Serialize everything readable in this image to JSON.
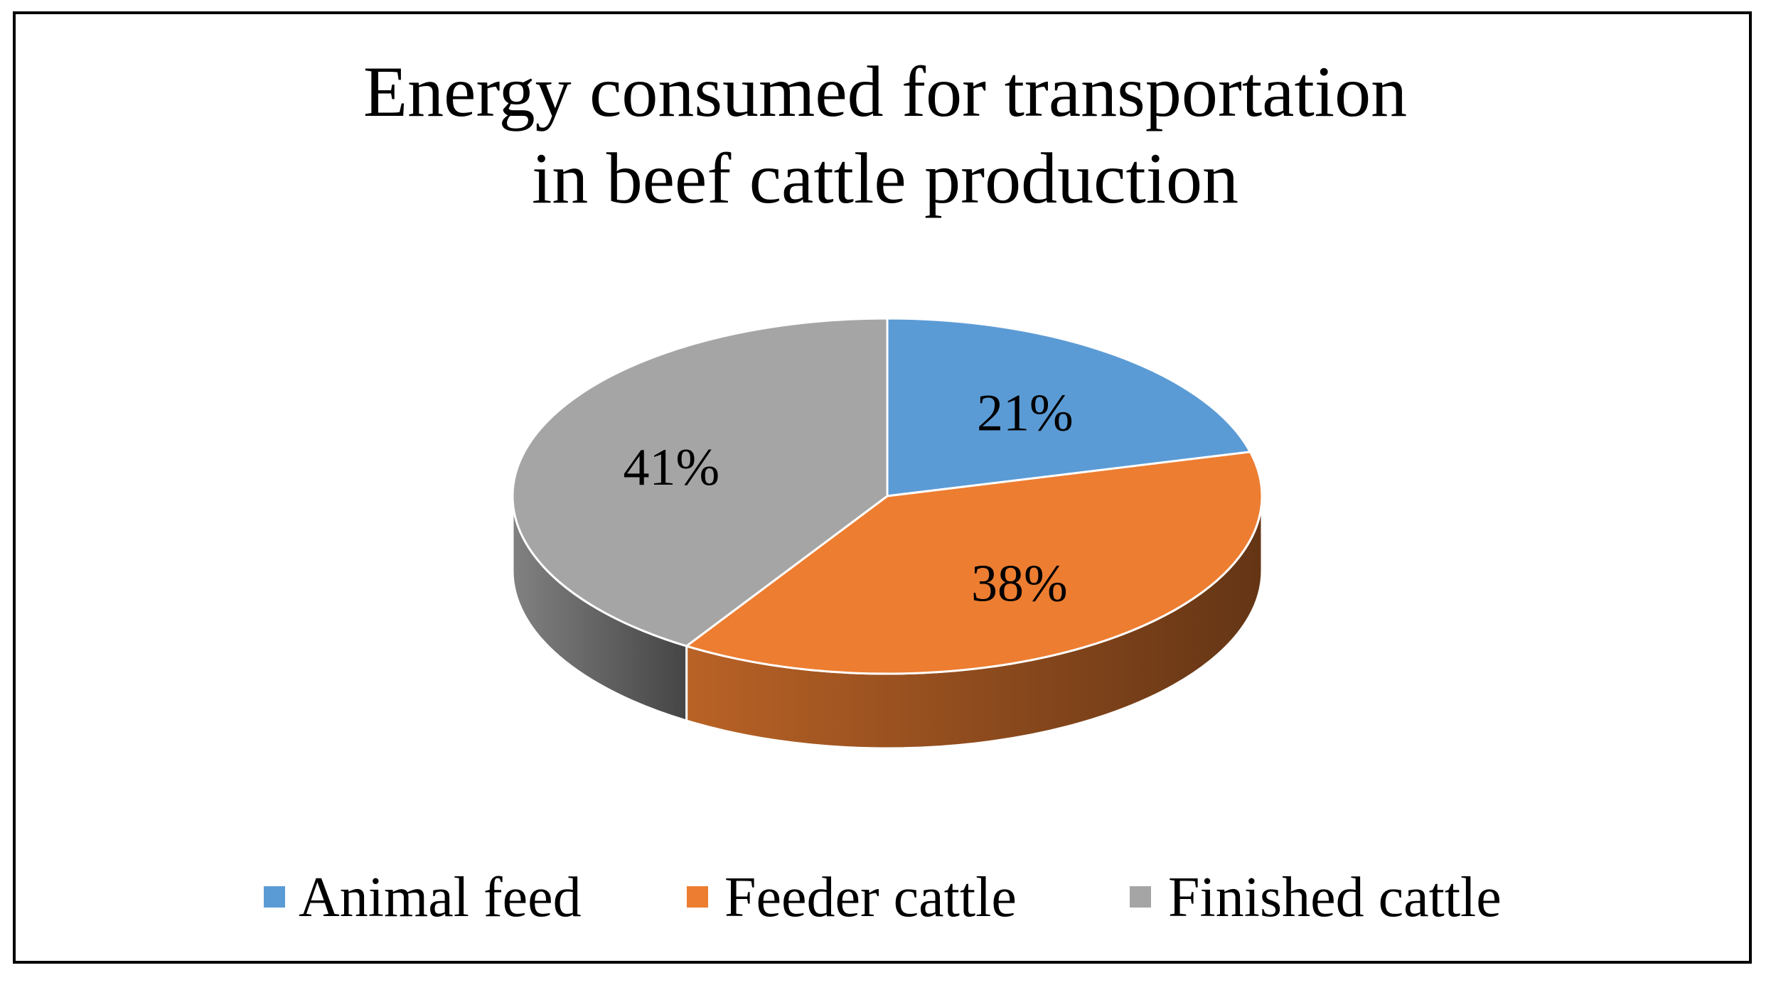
{
  "chart_data": {
    "type": "pie",
    "variant": "3d",
    "title": [
      "Energy consumed for transportation",
      "in beef cattle production"
    ],
    "categories": [
      "Animal feed",
      "Feeder cattle",
      "Finished cattle"
    ],
    "values": [
      21,
      38,
      41
    ],
    "value_labels": [
      "21%",
      "38%",
      "41%"
    ],
    "unit": "%",
    "colors": [
      "#5b9bd5",
      "#ed7d31",
      "#a5a5a5"
    ],
    "legend_position": "bottom"
  }
}
